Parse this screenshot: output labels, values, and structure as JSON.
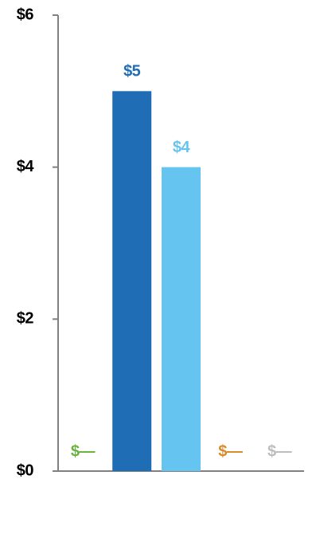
{
  "chart_data": {
    "type": "bar",
    "categories": [
      null,
      null,
      null,
      null,
      null
    ],
    "values": [
      0,
      5,
      4,
      0,
      0
    ],
    "value_labels": [
      "$—",
      "$5",
      "$4",
      "$—",
      "$—"
    ],
    "colors": [
      "#6ab43e",
      "#1f6db5",
      "#66c5f0",
      "#d98b2b",
      "#bdbdbd"
    ],
    "ylim": [
      0,
      6
    ],
    "yticks": [
      {
        "value": 0,
        "label": "$0"
      },
      {
        "value": 2,
        "label": "$2"
      },
      {
        "value": 4,
        "label": "$4"
      },
      {
        "value": 6,
        "label": "$6"
      }
    ],
    "grid": false
  }
}
